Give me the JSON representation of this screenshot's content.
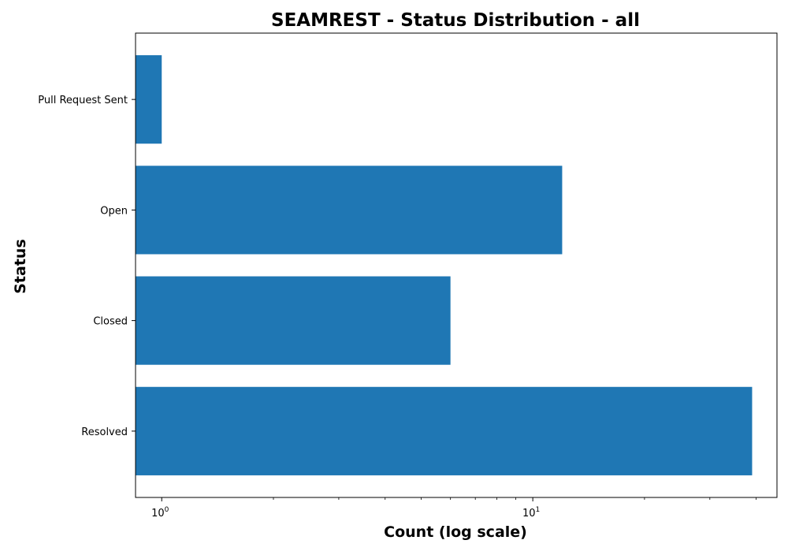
{
  "chart_data": {
    "type": "bar",
    "orientation": "horizontal",
    "title": "SEAMREST - Status Distribution - all",
    "xlabel": "Count (log scale)",
    "ylabel": "Status",
    "x_scale": "log",
    "xlim": [
      0.85,
      45.5
    ],
    "x_tick_labels": [
      {
        "value": 1,
        "base": "10",
        "exponent": "0"
      },
      {
        "value": 10,
        "base": "10",
        "exponent": "1"
      }
    ],
    "x_minor_ticks": [
      2,
      3,
      4,
      5,
      6,
      7,
      8,
      9,
      20,
      30,
      40
    ],
    "categories": [
      "Pull Request Sent",
      "Open",
      "Closed",
      "Resolved"
    ],
    "values": [
      1,
      12,
      6,
      39
    ],
    "bar_color": "#1f77b4",
    "grid": false,
    "legend": "none"
  }
}
